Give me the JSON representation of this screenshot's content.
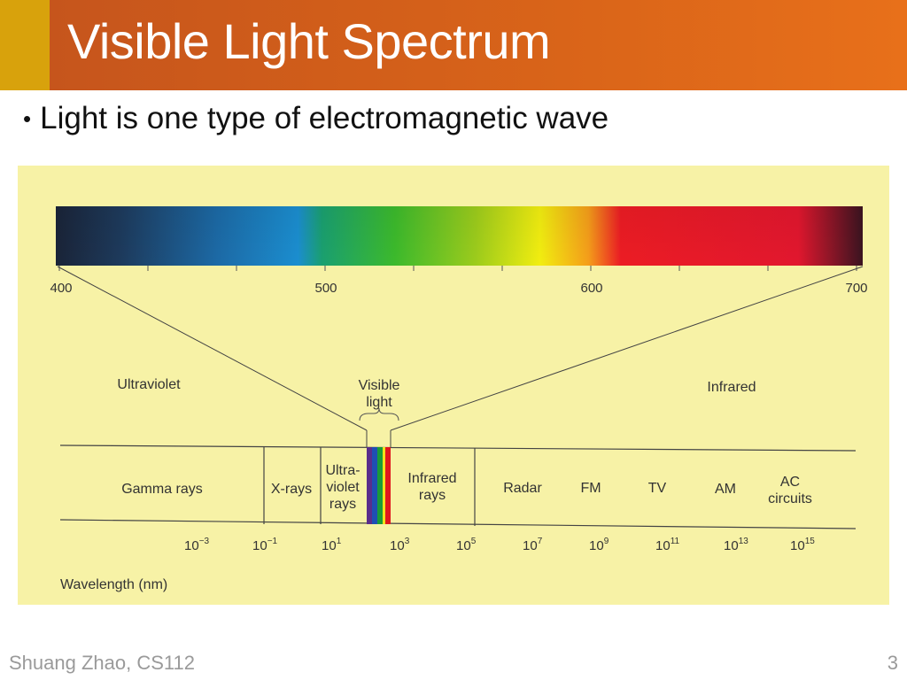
{
  "slide": {
    "title": "Visible Light Spectrum",
    "bullet": "Light is one type of electromagnetic wave",
    "footer_author": "Shuang Zhao, CS112",
    "page_number": "3"
  },
  "figure": {
    "spectrum_ticks": [
      "400",
      "500",
      "600",
      "700"
    ],
    "region_labels": {
      "uv": "Ultraviolet",
      "visible": [
        "Visible",
        "light"
      ],
      "ir": "Infrared"
    },
    "band_labels": [
      {
        "lines": [
          "Gamma rays"
        ]
      },
      {
        "lines": [
          "X-rays"
        ]
      },
      {
        "lines": [
          "Ultra-",
          "violet",
          "rays"
        ]
      },
      {
        "lines": [
          "Infrared",
          "rays"
        ]
      },
      {
        "lines": [
          "Radar"
        ]
      },
      {
        "lines": [
          "FM"
        ]
      },
      {
        "lines": [
          "TV"
        ]
      },
      {
        "lines": [
          "AM"
        ]
      },
      {
        "lines": [
          "AC",
          "circuits"
        ]
      }
    ],
    "wavelength_ticks": [
      {
        "base": "10",
        "exp": "−3"
      },
      {
        "base": "10",
        "exp": "−1"
      },
      {
        "base": "10",
        "exp": "1"
      },
      {
        "base": "10",
        "exp": "3"
      },
      {
        "base": "10",
        "exp": "5"
      },
      {
        "base": "10",
        "exp": "7"
      },
      {
        "base": "10",
        "exp": "9"
      },
      {
        "base": "10",
        "exp": "11"
      },
      {
        "base": "10",
        "exp": "13"
      },
      {
        "base": "10",
        "exp": "15"
      }
    ],
    "axis_label": "Wavelength (nm)"
  },
  "colors": {
    "header": "#d96419",
    "header_accent": "#d8a20c",
    "figure_background": "#f7f2a6",
    "footer_text": "#9a9a9a"
  }
}
